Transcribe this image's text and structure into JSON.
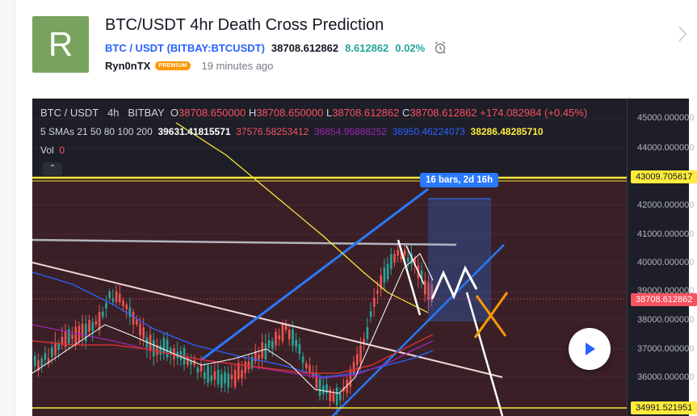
{
  "idea": {
    "avatar_letter": "R",
    "title": "BTC/USDT 4hr Death Cross Prediction",
    "symbol_pair": "BTC / USDT",
    "exchange_symbol": "(BITBAY:BTCUSDT)",
    "price": "38708.612862",
    "change": "8.612862",
    "change_percent": "0.02%",
    "author": "Ryn0nTX",
    "badge": "PREMIUM",
    "time_ago": "19 minutes ago"
  },
  "legend": {
    "ticker": "BTC / USDT",
    "interval": "4h",
    "exchange": "BITBAY",
    "o_label": "O",
    "o_value": "38708.650000",
    "h_label": "H",
    "h_value": "38708.650000",
    "l_label": "L",
    "l_value": "38708.612862",
    "c_label": "C",
    "c_value": "38708.612862",
    "change": "+174.082984 (+0.45%)",
    "sma_label": "5 SMAs 21 50 80 100 200",
    "sma_values": [
      "39631.41815571",
      "37576.58253412",
      "36854.95888252",
      "38950.46224073",
      "38286.48285710"
    ],
    "vol_label": "Vol",
    "vol_value": "0",
    "collapse_glyph": "⌃"
  },
  "colors": {
    "sma_21": "#ffffff",
    "sma_50": "#f7525f",
    "sma_80": "#9c27b0",
    "sma_100": "#2962ff",
    "sma_200": "#ffeb3b",
    "up_candle": "#26a69a",
    "down_candle": "#ef5350",
    "trendline": "#2979ff",
    "support_line": "#ffeb3b",
    "cross_mark": "#ff9800"
  },
  "price_axis": {
    "ticks": [
      "45000.000000",
      "44000.000000",
      "43009.705617",
      "42000.000000",
      "41000.000000",
      "40000.000000",
      "39000.000000",
      "38708.612862",
      "38000.000000",
      "37000.000000",
      "36000.000000",
      "34991.521951"
    ]
  },
  "measure_tool": {
    "label": "16 bars, 2d 16h"
  },
  "icons": {
    "alarm": "alarm-clock-icon",
    "next": "chevron-right-icon",
    "play": "play-icon"
  }
}
